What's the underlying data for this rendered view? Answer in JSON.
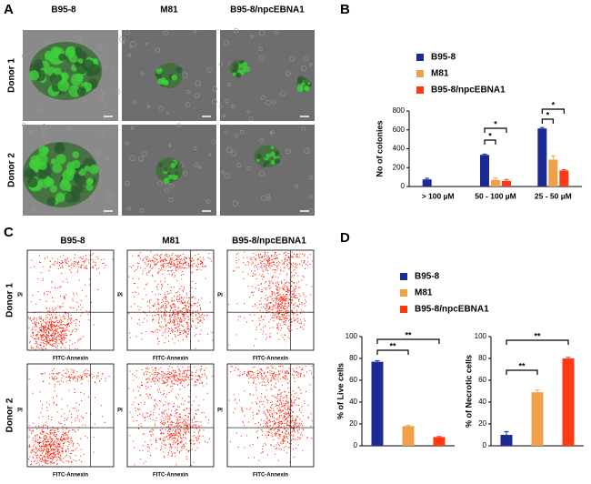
{
  "panels": {
    "A": {
      "label": "A",
      "columns": [
        "B95-8",
        "M81",
        "B95-8/npcEBNA1"
      ],
      "rows": [
        "Donor 1",
        "Donor 2"
      ]
    },
    "B": {
      "label": "B"
    },
    "C": {
      "label": "C",
      "columns": [
        "B95-8",
        "M81",
        "B95-8/npcEBNA1"
      ],
      "rows": [
        "Donor 1",
        "Donor 2"
      ],
      "x_label": "FITC-Annexin",
      "y_label": "PI"
    },
    "D": {
      "label": "D"
    }
  },
  "chart_data": [
    {
      "type": "bar",
      "y_label": "No of colonies",
      "categories": [
        "> 100 µM",
        "50 - 100 µM",
        "25 - 50 µM"
      ],
      "series": [
        {
          "name": "B95-8",
          "color": "#1c2a94",
          "values": [
            75,
            335,
            615
          ],
          "errors": [
            12,
            8,
            10
          ]
        },
        {
          "name": "M81",
          "color": "#f0a048",
          "values": [
            0,
            70,
            285
          ],
          "errors": [
            0,
            20,
            40
          ]
        },
        {
          "name": "B95-8/npcEBNA1",
          "color": "#ff3a12",
          "values": [
            0,
            60,
            170
          ],
          "errors": [
            0,
            15,
            8
          ]
        }
      ],
      "ylim": [
        0,
        800
      ],
      "yticks": [
        0,
        200,
        400,
        600,
        800
      ],
      "annotations": [
        "*",
        "*",
        "*",
        "*"
      ]
    },
    {
      "type": "bar",
      "y_label": "% of Live cells",
      "categories": [
        "B95-8",
        "M81",
        "B95-8/npcEBNA1"
      ],
      "colors": [
        "#1c2a94",
        "#f0a048",
        "#ff3a12"
      ],
      "values": [
        77,
        18,
        8
      ],
      "errors": [
        1,
        0.6,
        0.5
      ],
      "ylim": [
        0,
        100
      ],
      "yticks": [
        0,
        20,
        40,
        60,
        80,
        100
      ],
      "annotations": [
        "**",
        "**"
      ]
    },
    {
      "type": "bar",
      "y_label": "% of Necrotic cells",
      "colors": [
        "#1c2a94",
        "#f0a048",
        "#ff3a12"
      ],
      "values": [
        10,
        49,
        80
      ],
      "errors": [
        3,
        2,
        1
      ],
      "ylim": [
        0,
        100
      ],
      "yticks": [
        0,
        20,
        40,
        60,
        80,
        100
      ],
      "annotations": [
        "**",
        "**"
      ]
    }
  ]
}
